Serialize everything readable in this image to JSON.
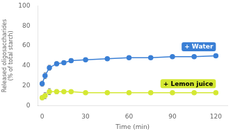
{
  "chart_data": {
    "type": "line",
    "xlabel": "Time (min)",
    "ylabel": "Released oligosaccharides\n(% of total starch)",
    "x": [
      0,
      2,
      5,
      10,
      15,
      20,
      30,
      45,
      60,
      75,
      90,
      105,
      120
    ],
    "series": [
      {
        "color": "#3a7fd5",
        "marker": "circle",
        "values": [
          22,
          30,
          38,
          42,
          43,
          45,
          46,
          47,
          48,
          48,
          49,
          49,
          50
        ],
        "yerr": [
          2.5,
          3,
          2.5,
          2,
          2,
          2,
          1.5,
          1.5,
          1.5,
          1,
          1,
          1,
          1
        ]
      },
      {
        "color": "#d4e833",
        "marker": "circle",
        "values": [
          8,
          10,
          14,
          14,
          14,
          14,
          13,
          13,
          13,
          13,
          13,
          13,
          13
        ],
        "yerr": [
          2,
          3,
          3,
          2,
          1,
          1,
          1,
          1,
          1,
          1,
          1,
          1,
          1
        ]
      }
    ],
    "annotations": [
      "+ Water",
      "+ Lemon juice"
    ],
    "xlim": [
      -3,
      128
    ],
    "xticks": [
      0,
      30,
      60,
      90,
      120
    ],
    "ylim": [
      0,
      100
    ],
    "yticks": [
      0,
      20,
      40,
      60,
      80,
      100
    ],
    "grid": false
  }
}
